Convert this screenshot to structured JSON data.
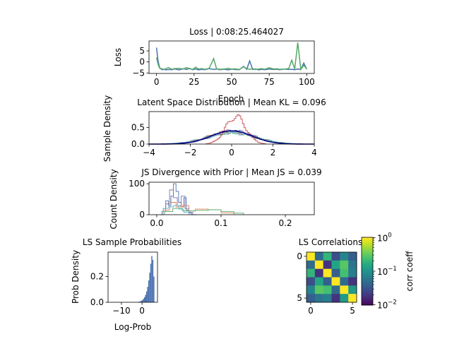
{
  "chart_data": [
    {
      "type": "line",
      "title": "Loss | 0:08:25.464027",
      "xlabel": "Epoch",
      "ylabel": "Loss",
      "xlim": [
        -5,
        105
      ],
      "ylim": [
        -5.2,
        9.5
      ],
      "xticks": [
        0,
        25,
        50,
        75,
        100
      ],
      "yticks": [
        -5,
        0,
        5
      ],
      "series": [
        {
          "color": "#4c72b0",
          "x": [
            0,
            1,
            2,
            3,
            4,
            5,
            6,
            8,
            10,
            12,
            15,
            18,
            20,
            22,
            24,
            26,
            28,
            30,
            32,
            35,
            38,
            40,
            42,
            45,
            48,
            50,
            52,
            55,
            58,
            60,
            62,
            64,
            66,
            68,
            70,
            72,
            75,
            78,
            80,
            82,
            85,
            88,
            90,
            92,
            94,
            96,
            98,
            100
          ],
          "y": [
            6.5,
            0.5,
            -2.5,
            -3.2,
            -3.5,
            -3.3,
            -3.6,
            -3.4,
            -3.5,
            -3.2,
            -3.6,
            -3.0,
            -3.4,
            -2.9,
            -3.5,
            -3.2,
            -3.6,
            -3.3,
            -3.5,
            -3.0,
            -3.4,
            -3.2,
            -3.5,
            -3.3,
            -3.6,
            -3.2,
            -3.4,
            -3.5,
            -2.0,
            -3.3,
            0.5,
            -3.4,
            -3.2,
            -3.6,
            -3.3,
            -3.5,
            -3.2,
            -3.4,
            -3.3,
            -3.5,
            -3.2,
            -3.4,
            -3.3,
            -3.5,
            -3.2,
            -3.4,
            -0.5,
            -3.3
          ]
        },
        {
          "color": "#55a868",
          "x": [
            0,
            1,
            2,
            3,
            4,
            5,
            6,
            8,
            10,
            12,
            15,
            18,
            20,
            22,
            24,
            26,
            28,
            30,
            32,
            35,
            38,
            40,
            42,
            45,
            48,
            50,
            52,
            55,
            58,
            60,
            62,
            64,
            66,
            68,
            70,
            72,
            75,
            78,
            80,
            82,
            85,
            88,
            90,
            92,
            94,
            96,
            98,
            100
          ],
          "y": [
            2.0,
            -1.0,
            -2.8,
            -3.0,
            -3.2,
            -3.4,
            -3.1,
            -2.5,
            -3.3,
            -3.0,
            -2.9,
            -3.2,
            -2.5,
            -3.1,
            -3.4,
            -2.4,
            -3.2,
            -3.0,
            -3.3,
            -2.9,
            1.5,
            -3.1,
            -3.3,
            -3.2,
            -2.9,
            -3.3,
            -3.1,
            -3.4,
            -2.2,
            -3.0,
            -3.3,
            -3.1,
            -3.4,
            -3.2,
            -3.0,
            -3.3,
            -2.6,
            -3.2,
            -3.1,
            -3.3,
            -3.2,
            -3.0,
            0.8,
            -3.2,
            8.8,
            -3.3,
            -1.5,
            -3.2
          ]
        }
      ]
    },
    {
      "type": "histogram",
      "title": "Latent Space Distribution | Mean KL = 0.096",
      "xlabel": "",
      "ylabel": "Sample Density",
      "xlim": [
        -4,
        4
      ],
      "ylim": [
        0,
        0.98
      ],
      "xticks": [
        -4,
        -2,
        0,
        2,
        4
      ],
      "yticks": [
        0.0,
        0.5
      ],
      "prior_curve": {
        "type": "standard normal",
        "color": "#000080"
      },
      "histograms": [
        {
          "color": "#4c72b0",
          "mean": 0.0,
          "sd": 1.05
        },
        {
          "color": "#55a868",
          "mean": 0.1,
          "sd": 1.15
        },
        {
          "color": "#dd8452",
          "mean": -0.1,
          "sd": 1.1
        },
        {
          "color": "#8172b3",
          "mean": 0.05,
          "sd": 1.0
        },
        {
          "color": "#64b5cd",
          "mean": -0.05,
          "sd": 1.2
        },
        {
          "color": "#c44e52",
          "mean": 0.2,
          "sd": 0.48
        }
      ]
    },
    {
      "type": "histogram",
      "title": "JS Divergence with Prior | Mean JS = 0.039",
      "xlabel": "",
      "ylabel": "Count Density",
      "xlim": [
        -0.012,
        0.245
      ],
      "ylim": [
        0,
        105
      ],
      "xticks": [
        0.0,
        0.1,
        0.2
      ],
      "yticks": [
        0,
        100
      ],
      "histograms": [
        {
          "color": "#4c72b0",
          "edges": [
            0.006,
            0.01,
            0.014,
            0.018,
            0.022,
            0.026,
            0.03,
            0.034,
            0.038,
            0.042,
            0.046,
            0.05,
            0.054,
            0.058
          ],
          "counts": [
            0,
            20,
            45,
            30,
            60,
            100,
            75,
            40,
            25,
            55,
            15,
            5,
            0
          ]
        },
        {
          "color": "#8172b3",
          "edges": [
            0.008,
            0.014,
            0.02,
            0.026,
            0.032,
            0.038,
            0.044,
            0.05,
            0.056,
            0.062
          ],
          "counts": [
            10,
            35,
            80,
            55,
            30,
            60,
            20,
            8,
            0
          ]
        },
        {
          "color": "#dd8452",
          "edges": [
            0.01,
            0.02,
            0.03,
            0.04,
            0.05,
            0.06,
            0.08,
            0.1,
            0.12
          ],
          "counts": [
            15,
            40,
            25,
            30,
            12,
            18,
            16,
            6
          ]
        },
        {
          "color": "#55a868",
          "edges": [
            0.012,
            0.025,
            0.04,
            0.06,
            0.08,
            0.1,
            0.12,
            0.135
          ],
          "counts": [
            10,
            20,
            12,
            14,
            16,
            10,
            5
          ]
        },
        {
          "color": "#64b5cd",
          "edges": [
            0.01,
            0.018,
            0.026,
            0.034,
            0.042,
            0.05
          ],
          "counts": [
            20,
            25,
            30,
            18,
            8
          ]
        }
      ]
    },
    {
      "type": "histogram",
      "title": "LS Sample Probabilities",
      "xlabel": "Log-Prob",
      "ylabel": "Prob Density",
      "xlim": [
        -16.5,
        7.5
      ],
      "ylim": [
        0,
        0.39
      ],
      "xticks": [
        -10,
        0
      ],
      "yticks": [
        0.0,
        0.2
      ],
      "bars": {
        "color": "#4c72b0",
        "edges": [
          -2.0,
          -1.5,
          -1.0,
          -0.5,
          0.0,
          0.5,
          1.0,
          1.5,
          2.0,
          2.5,
          3.0,
          3.5,
          4.0,
          4.5,
          5.0,
          5.5,
          6.0
        ],
        "values": [
          0.003,
          0.005,
          0.008,
          0.012,
          0.018,
          0.027,
          0.04,
          0.058,
          0.085,
          0.12,
          0.17,
          0.23,
          0.3,
          0.36,
          0.33,
          0.2
        ]
      }
    },
    {
      "type": "heatmap",
      "title": "LS Correlations",
      "colorbar_label": "corr coeff",
      "colorbar_scale": "log",
      "colorbar_ticks": [
        "10^0",
        "10^-1",
        "10^-2"
      ],
      "xticks": [
        0,
        5
      ],
      "yticks": [
        0,
        5
      ],
      "colormap": "viridis",
      "vmin": 0.01,
      "vmax": 1.0,
      "matrix": [
        [
          1.0,
          0.05,
          0.2,
          0.03,
          0.08,
          0.04
        ],
        [
          0.05,
          1.0,
          0.02,
          0.15,
          0.3,
          0.06
        ],
        [
          0.2,
          0.02,
          1.0,
          0.04,
          0.25,
          0.07
        ],
        [
          0.03,
          0.15,
          0.04,
          1.0,
          0.05,
          0.02
        ],
        [
          0.08,
          0.3,
          0.25,
          0.05,
          1.0,
          0.12
        ],
        [
          0.04,
          0.06,
          0.07,
          0.02,
          0.12,
          1.0
        ]
      ]
    }
  ]
}
